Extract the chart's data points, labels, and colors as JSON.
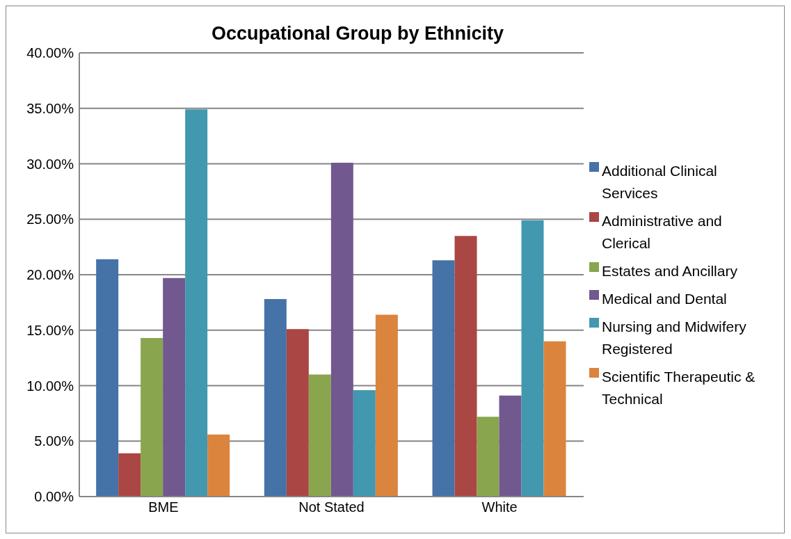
{
  "chart_data": {
    "type": "bar",
    "title": "Occupational Group by Ethnicity",
    "categories": [
      "BME",
      "Not Stated",
      "White"
    ],
    "series": [
      {
        "name": "Additional Clinical Services",
        "color": "#4572a7",
        "values": [
          21.4,
          17.8,
          21.3
        ]
      },
      {
        "name": "Administrative and Clerical",
        "color": "#aa4643",
        "values": [
          3.9,
          15.1,
          23.5
        ]
      },
      {
        "name": "Estates and Ancillary",
        "color": "#89a54e",
        "values": [
          14.3,
          11.0,
          7.2
        ]
      },
      {
        "name": "Medical and Dental",
        "color": "#71588f",
        "values": [
          19.7,
          30.1,
          9.1
        ]
      },
      {
        "name": "Nursing and Midwifery Registered",
        "color": "#4198af",
        "values": [
          34.9,
          9.6,
          24.9
        ]
      },
      {
        "name": "Scientific Therapeutic & Technical",
        "color": "#db843d",
        "values": [
          5.6,
          16.4,
          14.0
        ]
      }
    ],
    "ylim": [
      0,
      40
    ],
    "yticks": [
      {
        "value": 0,
        "label": "0.00%"
      },
      {
        "value": 5,
        "label": "5.00%"
      },
      {
        "value": 10,
        "label": "10.00%"
      },
      {
        "value": 15,
        "label": "15.00%"
      },
      {
        "value": 20,
        "label": "20.00%"
      },
      {
        "value": 25,
        "label": "25.00%"
      },
      {
        "value": 30,
        "label": "30.00%"
      },
      {
        "value": 35,
        "label": "35.00%"
      },
      {
        "value": 40,
        "label": "40.00%"
      }
    ],
    "grid": "y",
    "legend": "right"
  }
}
